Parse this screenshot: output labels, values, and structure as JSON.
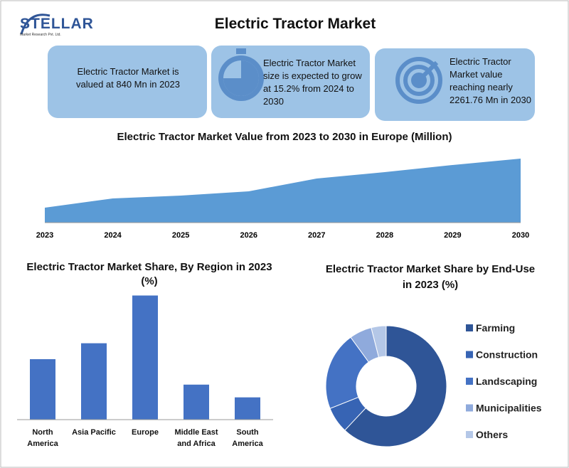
{
  "header": {
    "title": "Electric Tractor Market",
    "logo": "STELLAR",
    "logo_subtitle": "Market Research Pvt. Ltd."
  },
  "info_boxes": [
    "Electric Tractor Market is valued at 840 Mn in 2023",
    "Electric Tractor Market size is expected to grow at 15.2% from 2024 to 2030",
    "Electric Tractor Market value reaching nearly 2261.76 Mn in 2030"
  ],
  "chart_data": [
    {
      "type": "area",
      "title": "Electric Tractor Market Value from 2023 to 2030 in Europe (Million)",
      "categories": [
        "2023",
        "2024",
        "2025",
        "2026",
        "2027",
        "2028",
        "2029",
        "2030"
      ],
      "values": [
        21,
        34,
        38,
        44,
        62,
        71,
        81,
        90
      ],
      "ylim": [
        0,
        100
      ],
      "color": "#5b9bd5"
    },
    {
      "type": "bar",
      "title": "Electric Tractor Market Share, By Region in 2023 (%)",
      "categories": [
        "North America",
        "Asia Pacific",
        "Europe",
        "Middle East and Africa",
        "South America"
      ],
      "values": [
        19,
        24,
        39,
        11,
        7
      ],
      "ylim": [
        0,
        40
      ],
      "color": "#4472c4"
    },
    {
      "type": "donut",
      "title": "Electric Tractor Market Share by End-Use in 2023 (%)",
      "categories": [
        "Farming",
        "Construction",
        "Landscaping",
        "Municipalities",
        "Others"
      ],
      "values": [
        62,
        7,
        21,
        6,
        4
      ],
      "colors": [
        "#2f5597",
        "#3764b4",
        "#4472c4",
        "#8faadc",
        "#b4c7e7"
      ],
      "legend": "right"
    }
  ]
}
